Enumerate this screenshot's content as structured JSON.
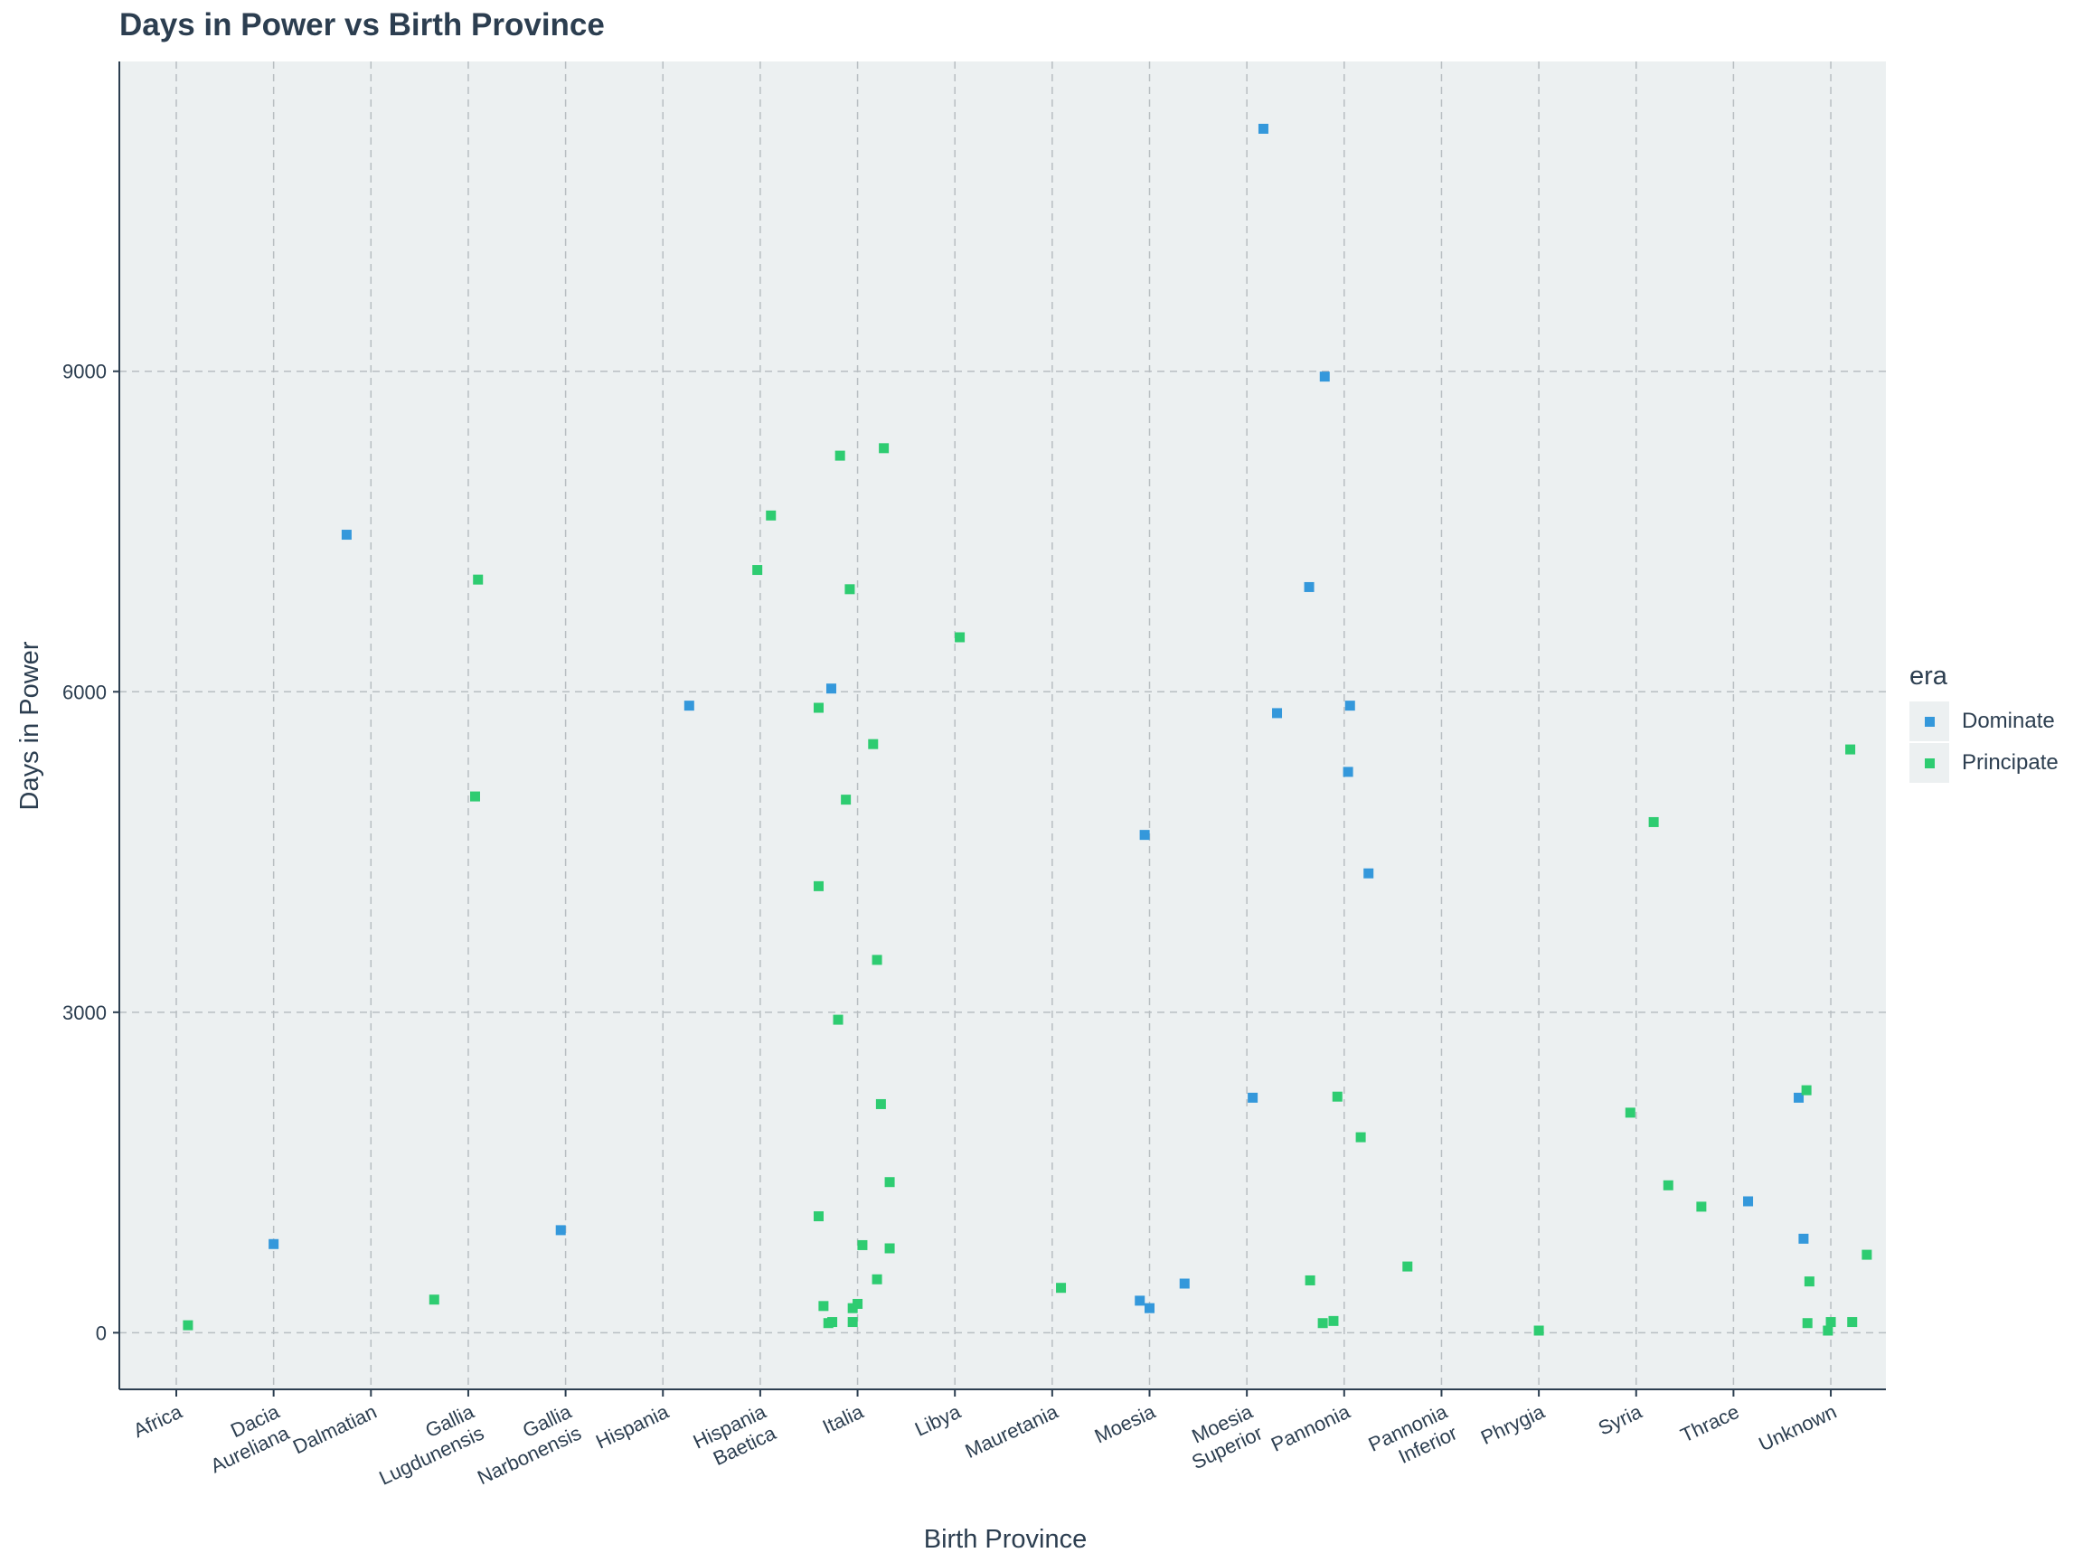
{
  "chart_data": {
    "type": "scatter",
    "title": "Days in Power vs Birth Province",
    "xlabel": "Birth Province",
    "ylabel": "Days in Power",
    "categories": [
      "Africa",
      "Dacia Aureliana",
      "Dalmatian",
      "Gallia Lugdunensis",
      "Gallia Narbonensis",
      "Hispania",
      "Hispania Baetica",
      "Italia",
      "Libya",
      "Mauretania",
      "Moesia",
      "Moesia Superior",
      "Pannonia",
      "Pannonia Inferior",
      "Phrygia",
      "Syria",
      "Thrace",
      "Unknown"
    ],
    "y_ticks": [
      0,
      3000,
      6000,
      9000
    ],
    "y_tick_labels": [
      "0",
      "3000",
      "6000",
      "9000"
    ],
    "ylim": [
      -530,
      11900
    ],
    "grid": true,
    "legend_title": "era",
    "legend_position": "right",
    "series": [
      {
        "name": "Dominate",
        "color": "#3498db",
        "points": [
          {
            "x": "Dacia Aureliana",
            "jitter": 0.0,
            "y": 830
          },
          {
            "x": "Dalmatian",
            "jitter": -0.25,
            "y": 7470
          },
          {
            "x": "Gallia Narbonensis",
            "jitter": -0.05,
            "y": 960
          },
          {
            "x": "Hispania",
            "jitter": 0.27,
            "y": 5870
          },
          {
            "x": "Italia",
            "jitter": -0.27,
            "y": 6030
          },
          {
            "x": "Moesia",
            "jitter": -0.1,
            "y": 300
          },
          {
            "x": "Moesia",
            "jitter": 0.0,
            "y": 230
          },
          {
            "x": "Moesia",
            "jitter": -0.05,
            "y": 4660
          },
          {
            "x": "Moesia",
            "jitter": 0.36,
            "y": 460
          },
          {
            "x": "Moesia Superior",
            "jitter": 0.06,
            "y": 2200
          },
          {
            "x": "Moesia Superior",
            "jitter": 0.17,
            "y": 11270
          },
          {
            "x": "Moesia Superior",
            "jitter": 0.31,
            "y": 5800
          },
          {
            "x": "Pannonia",
            "jitter": -0.36,
            "y": 6980
          },
          {
            "x": "Pannonia",
            "jitter": -0.2,
            "y": 8950
          },
          {
            "x": "Pannonia",
            "jitter": 0.04,
            "y": 5250
          },
          {
            "x": "Pannonia",
            "jitter": 0.06,
            "y": 5870
          },
          {
            "x": "Pannonia",
            "jitter": 0.25,
            "y": 4300
          },
          {
            "x": "Thrace",
            "jitter": 0.15,
            "y": 1230
          },
          {
            "x": "Unknown",
            "jitter": -0.33,
            "y": 2200
          },
          {
            "x": "Unknown",
            "jitter": -0.28,
            "y": 880
          }
        ]
      },
      {
        "name": "Principate",
        "color": "#2ecc71",
        "points": [
          {
            "x": "Africa",
            "jitter": 0.12,
            "y": 70
          },
          {
            "x": "Gallia Lugdunensis",
            "jitter": 0.1,
            "y": 7050
          },
          {
            "x": "Gallia Lugdunensis",
            "jitter": 0.07,
            "y": 5020
          },
          {
            "x": "Gallia Lugdunensis",
            "jitter": -0.35,
            "y": 310
          },
          {
            "x": "Hispania Baetica",
            "jitter": -0.03,
            "y": 7140
          },
          {
            "x": "Hispania Baetica",
            "jitter": 0.11,
            "y": 7650
          },
          {
            "x": "Italia",
            "jitter": -0.4,
            "y": 5850
          },
          {
            "x": "Italia",
            "jitter": -0.4,
            "y": 4180
          },
          {
            "x": "Italia",
            "jitter": -0.4,
            "y": 1090
          },
          {
            "x": "Italia",
            "jitter": -0.35,
            "y": 250
          },
          {
            "x": "Italia",
            "jitter": -0.3,
            "y": 90
          },
          {
            "x": "Italia",
            "jitter": -0.26,
            "y": 100
          },
          {
            "x": "Italia",
            "jitter": -0.2,
            "y": 2930
          },
          {
            "x": "Italia",
            "jitter": -0.18,
            "y": 8210
          },
          {
            "x": "Italia",
            "jitter": -0.12,
            "y": 4990
          },
          {
            "x": "Italia",
            "jitter": -0.08,
            "y": 6960
          },
          {
            "x": "Italia",
            "jitter": -0.05,
            "y": 230
          },
          {
            "x": "Italia",
            "jitter": -0.05,
            "y": 100
          },
          {
            "x": "Italia",
            "jitter": 0.0,
            "y": 270
          },
          {
            "x": "Italia",
            "jitter": 0.05,
            "y": 820
          },
          {
            "x": "Italia",
            "jitter": 0.16,
            "y": 5510
          },
          {
            "x": "Italia",
            "jitter": 0.2,
            "y": 3490
          },
          {
            "x": "Italia",
            "jitter": 0.2,
            "y": 500
          },
          {
            "x": "Italia",
            "jitter": 0.24,
            "y": 2140
          },
          {
            "x": "Italia",
            "jitter": 0.27,
            "y": 8280
          },
          {
            "x": "Italia",
            "jitter": 0.33,
            "y": 1410
          },
          {
            "x": "Italia",
            "jitter": 0.33,
            "y": 790
          },
          {
            "x": "Libya",
            "jitter": 0.05,
            "y": 6510
          },
          {
            "x": "Mauretania",
            "jitter": 0.09,
            "y": 420
          },
          {
            "x": "Pannonia",
            "jitter": -0.35,
            "y": 490
          },
          {
            "x": "Pannonia",
            "jitter": -0.22,
            "y": 90
          },
          {
            "x": "Pannonia",
            "jitter": -0.11,
            "y": 110
          },
          {
            "x": "Pannonia",
            "jitter": -0.07,
            "y": 2210
          },
          {
            "x": "Pannonia",
            "jitter": 0.17,
            "y": 1830
          },
          {
            "x": "Pannonia Inferior",
            "jitter": -0.35,
            "y": 620
          },
          {
            "x": "Phrygia",
            "jitter": 0.0,
            "y": 20
          },
          {
            "x": "Syria",
            "jitter": -0.06,
            "y": 2060
          },
          {
            "x": "Syria",
            "jitter": 0.18,
            "y": 4780
          },
          {
            "x": "Syria",
            "jitter": 0.33,
            "y": 1380
          },
          {
            "x": "Thrace",
            "jitter": -0.33,
            "y": 1180
          },
          {
            "x": "Unknown",
            "jitter": -0.25,
            "y": 2270
          },
          {
            "x": "Unknown",
            "jitter": -0.22,
            "y": 480
          },
          {
            "x": "Unknown",
            "jitter": -0.24,
            "y": 90
          },
          {
            "x": "Unknown",
            "jitter": -0.03,
            "y": 20
          },
          {
            "x": "Unknown",
            "jitter": 0.0,
            "y": 100
          },
          {
            "x": "Unknown",
            "jitter": 0.2,
            "y": 5460
          },
          {
            "x": "Unknown",
            "jitter": 0.22,
            "y": 100
          },
          {
            "x": "Unknown",
            "jitter": 0.37,
            "y": 730
          }
        ]
      }
    ]
  }
}
